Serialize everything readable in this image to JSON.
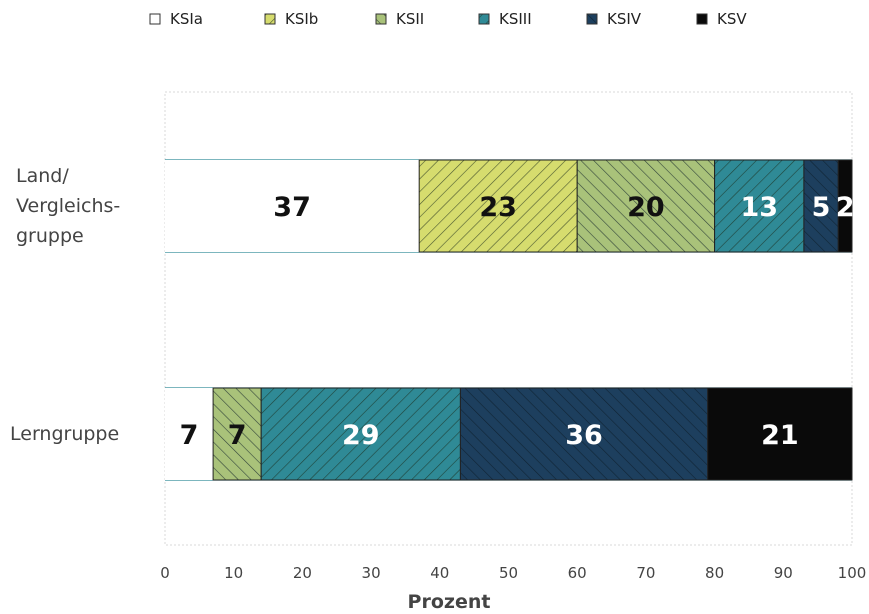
{
  "chart_data": {
    "type": "bar",
    "orientation": "horizontal",
    "stacked": true,
    "xlabel": "Prozent",
    "xlim": [
      0,
      100
    ],
    "xticks": [
      "0",
      "10",
      "20",
      "30",
      "40",
      "50",
      "60",
      "70",
      "80",
      "90",
      "100"
    ],
    "categories": [
      {
        "lines": [
          "Land/",
          "Vergleichs-",
          "gruppe"
        ]
      },
      {
        "lines": [
          "Lerngruppe"
        ]
      }
    ],
    "series": [
      {
        "name": "KSIa",
        "values": [
          37,
          7
        ],
        "labels": [
          "37",
          "7"
        ],
        "color": "#ffffff",
        "hatch": "none",
        "label_color": "#111111"
      },
      {
        "name": "KSIb",
        "values": [
          23,
          0
        ],
        "labels": [
          "23",
          ""
        ],
        "color": "#d6dc6e",
        "hatch": "fwd",
        "label_color": "#111111"
      },
      {
        "name": "KSII",
        "values": [
          20,
          7
        ],
        "labels": [
          "20",
          "7"
        ],
        "color": "#a9c27a",
        "hatch": "back",
        "label_color": "#111111"
      },
      {
        "name": "KSIII",
        "values": [
          13,
          29
        ],
        "labels": [
          "13",
          "29"
        ],
        "color": "#2f8a96",
        "hatch": "fwd",
        "label_color": "#ffffff"
      },
      {
        "name": "KSIV",
        "values": [
          5,
          36
        ],
        "labels": [
          "5",
          "36"
        ],
        "color": "#1d3f5e",
        "hatch": "back",
        "label_color": "#ffffff"
      },
      {
        "name": "KSV",
        "values": [
          2,
          21
        ],
        "labels": [
          "2",
          "21"
        ],
        "color": "#0a0a0a",
        "hatch": "none",
        "label_color": "#ffffff"
      }
    ],
    "legend_position": "top"
  }
}
